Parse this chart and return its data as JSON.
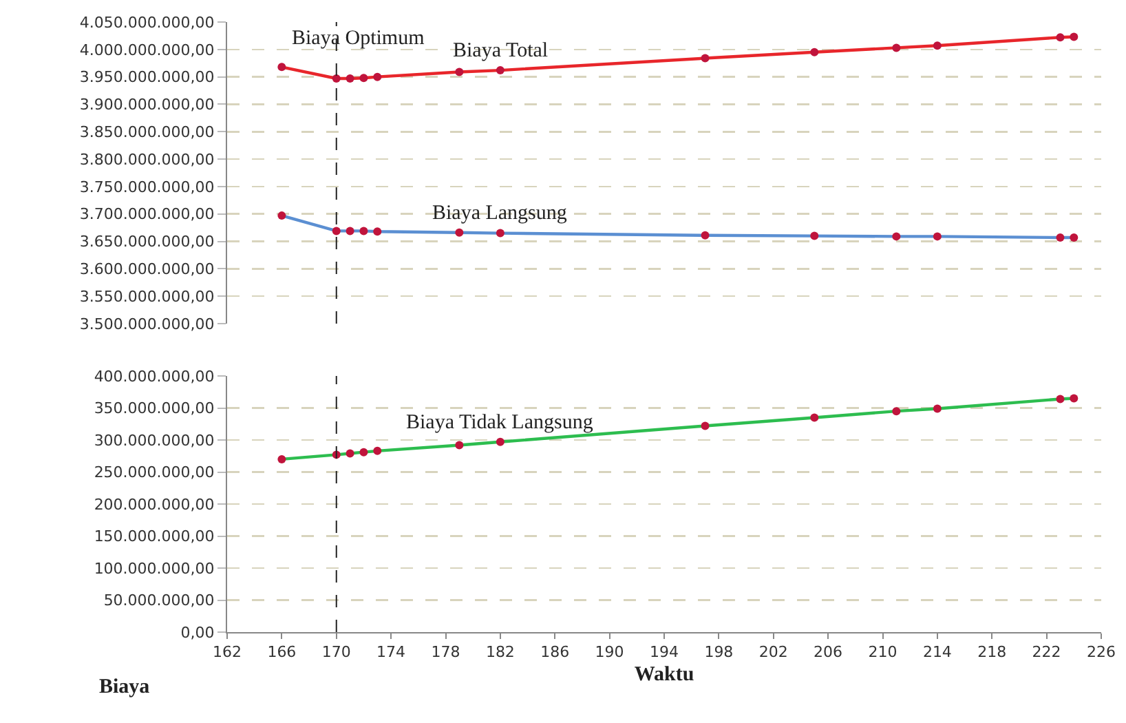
{
  "chart_data": [
    {
      "type": "line",
      "x": [
        166,
        170,
        171,
        172,
        173,
        179,
        182,
        197,
        205,
        211,
        214,
        223,
        224
      ],
      "series": [
        {
          "name": "Biaya Total",
          "color": "#e8262b",
          "values": [
            3968000000,
            3947000000,
            3947000000,
            3948000000,
            3950000000,
            3959000000,
            3962000000,
            3984000000,
            3995000000,
            4003000000,
            4007000000,
            4022000000,
            4023000000
          ]
        },
        {
          "name": "Biaya Langsung",
          "color": "#5b8fd2",
          "values": [
            3697000000,
            3669000000,
            3669000000,
            3669000000,
            3668000000,
            3666000000,
            3665000000,
            3661000000,
            3660000000,
            3659000000,
            3659000000,
            3657000000,
            3657000000
          ]
        }
      ],
      "xlim": [
        162,
        226
      ],
      "ylim": [
        3500000000,
        4050000000
      ],
      "yticks": [
        {
          "value": 3500000000,
          "label": "3.500.000.000,00"
        },
        {
          "value": 3550000000,
          "label": "3.550.000.000,00"
        },
        {
          "value": 3600000000,
          "label": "3.600.000.000,00"
        },
        {
          "value": 3650000000,
          "label": "3.650.000.000,00"
        },
        {
          "value": 3700000000,
          "label": "3.700.000.000,00"
        },
        {
          "value": 3750000000,
          "label": "3.750.000.000,00"
        },
        {
          "value": 3800000000,
          "label": "3.800.000.000,00"
        },
        {
          "value": 3850000000,
          "label": "3.850.000.000,00"
        },
        {
          "value": 3900000000,
          "label": "3.900.000.000,00"
        },
        {
          "value": 3950000000,
          "label": "3.950.000.000,00"
        },
        {
          "value": 4000000000,
          "label": "4.000.000.000,00"
        },
        {
          "value": 4050000000,
          "label": "4.050.000.000,00"
        }
      ],
      "ref_lines": [
        {
          "axis": "x",
          "value": 170,
          "label": "Biaya Optimum",
          "line_style": "dashed"
        }
      ],
      "grid": "y",
      "marker": "circle",
      "line_style": "solid",
      "tick_labels": "y"
    },
    {
      "type": "line",
      "x": [
        166,
        170,
        171,
        172,
        173,
        179,
        182,
        197,
        205,
        211,
        214,
        223,
        224
      ],
      "series": [
        {
          "name": "Biaya Tidak Langsung",
          "color": "#2dbd4f",
          "values": [
            270000000,
            277000000,
            279000000,
            281000000,
            283000000,
            292000000,
            297000000,
            322000000,
            335000000,
            345000000,
            349000000,
            364000000,
            365000000
          ]
        }
      ],
      "xlabel": "Waktu",
      "ylabel": "Biaya",
      "xlim": [
        162,
        226
      ],
      "ylim": [
        0,
        400000000
      ],
      "xticks": [
        162,
        166,
        170,
        174,
        178,
        182,
        186,
        190,
        194,
        198,
        202,
        206,
        210,
        214,
        218,
        222,
        226
      ],
      "yticks": [
        {
          "value": 0,
          "label": "0,00"
        },
        {
          "value": 50000000,
          "label": "50.000.000,00"
        },
        {
          "value": 100000000,
          "label": "100.000.000,00"
        },
        {
          "value": 150000000,
          "label": "150.000.000,00"
        },
        {
          "value": 200000000,
          "label": "200.000.000,00"
        },
        {
          "value": 250000000,
          "label": "250.000.000,00"
        },
        {
          "value": 300000000,
          "label": "300.000.000,00"
        },
        {
          "value": 350000000,
          "label": "350.000.000,00"
        },
        {
          "value": 400000000,
          "label": "400.000.000,00"
        }
      ],
      "ref_lines": [
        {
          "axis": "x",
          "value": 170,
          "line_style": "dashed"
        }
      ],
      "grid": "y",
      "marker": "circle",
      "line_style": "solid"
    }
  ]
}
